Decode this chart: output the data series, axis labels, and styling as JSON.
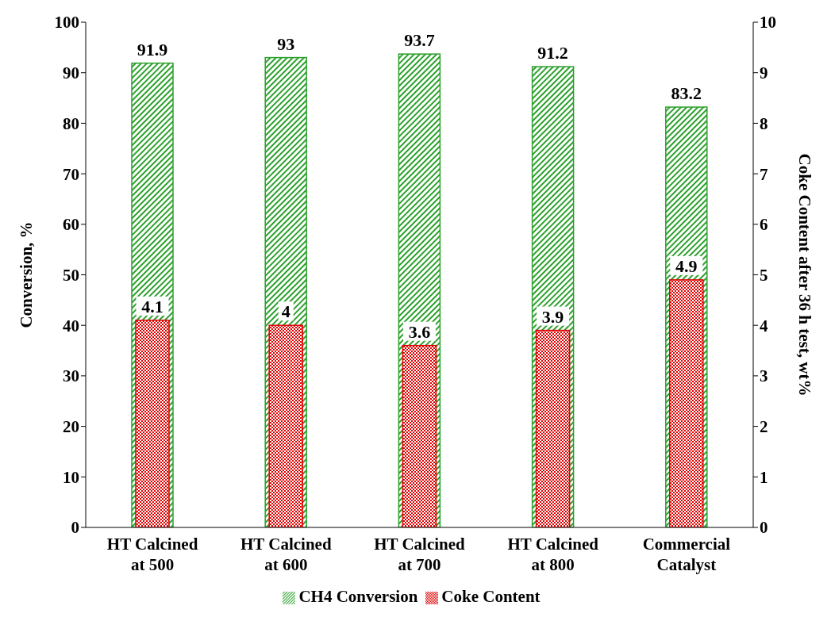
{
  "chart_data": {
    "type": "bar",
    "ylabel": "Conversion, %",
    "y2label": "Coke Content after 36 h test, wt%",
    "categories": [
      "HT Calcined at 500",
      "HT Calcined at 600",
      "HT Calcined at 700",
      "HT Calcined at 800",
      "Commercial Catalyst"
    ],
    "series": [
      {
        "name": "CH4 Conversion",
        "color": "#2ca02c",
        "values": [
          91.9,
          93,
          93.7,
          91.2,
          83.2
        ]
      },
      {
        "name": "Coke Content",
        "color": "#e00000",
        "axis": "y2",
        "values": [
          4.1,
          4,
          3.6,
          3.9,
          4.9
        ]
      }
    ],
    "ylim": [
      0,
      100
    ],
    "yticks": [
      0,
      10,
      20,
      30,
      40,
      50,
      60,
      70,
      80,
      90,
      100
    ],
    "y2lim": [
      0,
      10
    ],
    "y2ticks": [
      0,
      1,
      2,
      3,
      4,
      5,
      6,
      7,
      8,
      9,
      10
    ],
    "data_labels": true,
    "legend": "bottom",
    "grid": false
  }
}
